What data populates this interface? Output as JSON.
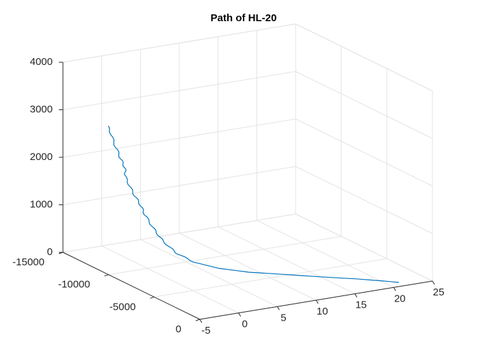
{
  "chart_data": {
    "type": "line3d",
    "title": "Path of HL-20",
    "xlabel": "",
    "ylabel": "",
    "zlabel": "",
    "x_ticks": [
      -5,
      0,
      5,
      10,
      15,
      20,
      25
    ],
    "y_ticks": [
      -15000,
      -10000,
      -5000,
      0
    ],
    "z_ticks": [
      0,
      1000,
      2000,
      3000,
      4000
    ],
    "xlim": [
      -5,
      25
    ],
    "ylim": [
      -15000,
      0
    ],
    "zlim": [
      0,
      4000
    ],
    "grid": true,
    "series": [
      {
        "color": "#0072BD",
        "points": [
          [
            -2.2,
            -12400,
            2830
          ],
          [
            -1.8,
            -12150,
            2500
          ],
          [
            -1.3,
            -11900,
            2200
          ],
          [
            -0.9,
            -11700,
            1980
          ],
          [
            -0.9,
            -11600,
            1780
          ],
          [
            -0.4,
            -11300,
            1500
          ],
          [
            0.2,
            -11000,
            1260
          ],
          [
            0.6,
            -10750,
            1030
          ],
          [
            1.3,
            -10400,
            760
          ],
          [
            2.0,
            -10000,
            520
          ],
          [
            3.0,
            -9400,
            300
          ],
          [
            4.5,
            -8700,
            130
          ],
          [
            6.5,
            -7700,
            40
          ],
          [
            9.0,
            -6500,
            5
          ],
          [
            12.0,
            -5200,
            0
          ],
          [
            15.0,
            -3800,
            0
          ],
          [
            18.0,
            -2500,
            0
          ],
          [
            20.0,
            -1500,
            0
          ],
          [
            21.5,
            -700,
            0
          ]
        ]
      }
    ]
  }
}
